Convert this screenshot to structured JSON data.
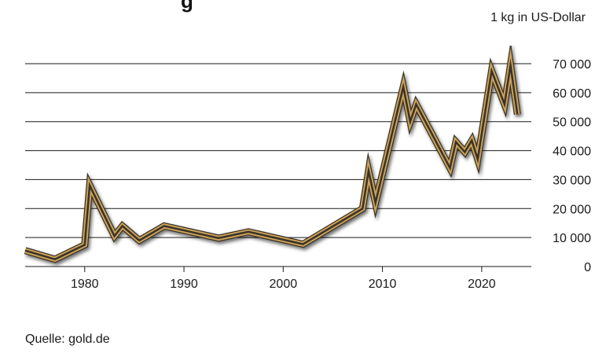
{
  "header": {
    "title_fragment": "g",
    "unit": "1 kg in US-Dollar"
  },
  "footer": {
    "source": "Quelle: gold.de"
  },
  "colors": {
    "line_outer": "#3a3226",
    "line_gold": "#c9a25a",
    "line_highlight": "#e8d39a",
    "grid": "#1a1a1a"
  },
  "chart_data": {
    "type": "line",
    "title": "",
    "xlabel": "",
    "ylabel": "1 kg in US-Dollar",
    "xlim": [
      1974,
      2025
    ],
    "ylim": [
      0,
      70000
    ],
    "grid": true,
    "x_ticks": [
      1980,
      1990,
      2000,
      2010,
      2020
    ],
    "x_tick_labels": [
      "1980",
      "1990",
      "2000",
      "2010",
      "2020"
    ],
    "y_ticks": [
      0,
      10000,
      20000,
      30000,
      40000,
      50000,
      60000,
      70000
    ],
    "y_tick_labels": [
      "0",
      "10 000",
      "20 000",
      "30 000",
      "40 000",
      "50 000",
      "60 000",
      "70 000"
    ],
    "series": [
      {
        "x": [
          1974,
          1977,
          1980,
          1980.5,
          1983,
          1983.8,
          1985.5,
          1988,
          1993.5,
          1996.5,
          2002,
          2008,
          2008.6,
          2009.3,
          2012.1,
          2012.8,
          2013.4,
          2016.8,
          2017.4,
          2018.3,
          2019,
          2019.6,
          2021,
          2022.3,
          2022.9,
          2023.6
        ],
        "y": [
          5500,
          2500,
          7500,
          28000,
          10500,
          14000,
          9000,
          14000,
          9800,
          12000,
          7700,
          20000,
          33000,
          22000,
          62000,
          50000,
          56000,
          34000,
          43000,
          39500,
          43500,
          37000,
          67500,
          56000,
          69500,
          52500
        ]
      }
    ]
  }
}
